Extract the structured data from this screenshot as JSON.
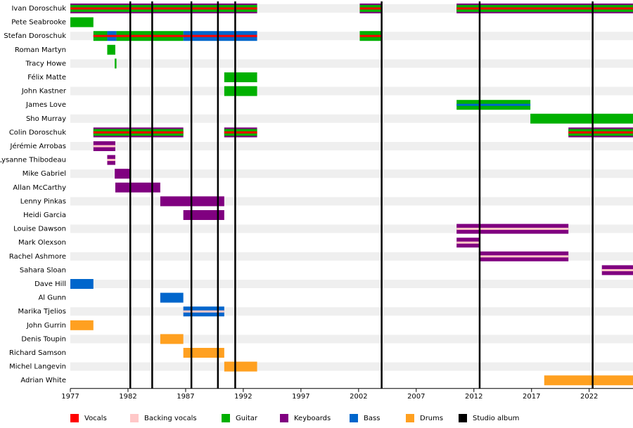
{
  "chart_data": {
    "type": "timeline",
    "xlim": [
      1977,
      2025.8
    ],
    "xticks": [
      1977,
      1982,
      1987,
      1992,
      1997,
      2002,
      2007,
      2012,
      2017,
      2022
    ],
    "roles": [
      {
        "name": "Vocals",
        "color": "#ff0000"
      },
      {
        "name": "Backing vocals",
        "color": "#ffc8c8"
      },
      {
        "name": "Guitar",
        "color": "#00b000"
      },
      {
        "name": "Keyboards",
        "color": "#800080"
      },
      {
        "name": "Bass",
        "color": "#0066cc"
      },
      {
        "name": "Drums",
        "color": "#ffa020"
      }
    ],
    "albums": {
      "name": "Studio album",
      "color": "#000000",
      "years": [
        1982.2,
        1984.1,
        1987.5,
        1989.8,
        1991.3,
        2004,
        2012.5,
        2022.3
      ]
    },
    "members": [
      {
        "name": "Ivan Doroschuk",
        "periods": [
          {
            "start": 1977,
            "end": 1993.2,
            "roles": [
              "Vocals",
              "Guitar",
              "Keyboards"
            ]
          },
          {
            "start": 2002.1,
            "end": 2004,
            "roles": [
              "Vocals",
              "Guitar",
              "Keyboards"
            ]
          },
          {
            "start": 2010.5,
            "end": 2025.8,
            "roles": [
              "Vocals",
              "Guitar",
              "Keyboards"
            ]
          }
        ]
      },
      {
        "name": "Pete Seabrooke",
        "periods": [
          {
            "start": 1977,
            "end": 1979,
            "roles": [
              "Guitar"
            ]
          }
        ]
      },
      {
        "name": "Stefan Doroschuk",
        "periods": [
          {
            "start": 1979,
            "end": 1980.2,
            "roles": [
              "Vocals",
              "Guitar"
            ]
          },
          {
            "start": 1980.2,
            "end": 1981,
            "roles": [
              "Vocals",
              "Bass"
            ]
          },
          {
            "start": 1981,
            "end": 1986.8,
            "roles": [
              "Vocals",
              "Guitar"
            ]
          },
          {
            "start": 1986.8,
            "end": 1993.2,
            "roles": [
              "Vocals",
              "Bass"
            ]
          },
          {
            "start": 2002.1,
            "end": 2004,
            "roles": [
              "Vocals",
              "Guitar"
            ]
          }
        ]
      },
      {
        "name": "Roman Martyn",
        "periods": [
          {
            "start": 1980.2,
            "end": 1980.9,
            "roles": [
              "Guitar"
            ]
          }
        ]
      },
      {
        "name": "Tracy Howe",
        "periods": [
          {
            "start": 1980.85,
            "end": 1981,
            "roles": [
              "Guitar"
            ]
          }
        ]
      },
      {
        "name": "Félix Matte",
        "periods": [
          {
            "start": 1990.35,
            "end": 1993.2,
            "roles": [
              "Guitar"
            ]
          }
        ]
      },
      {
        "name": "John Kastner",
        "periods": [
          {
            "start": 1990.35,
            "end": 1993.2,
            "roles": [
              "Guitar"
            ]
          }
        ]
      },
      {
        "name": "James Love",
        "periods": [
          {
            "start": 2010.5,
            "end": 2016.9,
            "roles": [
              "Bass",
              "Guitar"
            ]
          }
        ]
      },
      {
        "name": "Sho Murray",
        "periods": [
          {
            "start": 2016.9,
            "end": 2025.8,
            "roles": [
              "Guitar"
            ]
          }
        ]
      },
      {
        "name": "Colin Doroschuk",
        "periods": [
          {
            "start": 1979,
            "end": 1986.8,
            "roles": [
              "Vocals",
              "Guitar",
              "Keyboards"
            ]
          },
          {
            "start": 1990.35,
            "end": 1993.2,
            "roles": [
              "Vocals",
              "Guitar",
              "Keyboards"
            ]
          },
          {
            "start": 2020.2,
            "end": 2025.8,
            "roles": [
              "Vocals",
              "Guitar",
              "Keyboards"
            ]
          }
        ]
      },
      {
        "name": "Jérémie Arrobas",
        "periods": [
          {
            "start": 1979,
            "end": 1980.9,
            "roles": [
              "Backing vocals",
              "Keyboards"
            ]
          }
        ]
      },
      {
        "name": "Lysanne Thibodeau",
        "periods": [
          {
            "start": 1980.2,
            "end": 1980.9,
            "roles": [
              "Backing vocals",
              "Keyboards"
            ]
          }
        ]
      },
      {
        "name": "Mike Gabriel",
        "periods": [
          {
            "start": 1980.85,
            "end": 1982.2,
            "roles": [
              "Keyboards"
            ]
          }
        ]
      },
      {
        "name": "Allan McCarthy",
        "periods": [
          {
            "start": 1980.9,
            "end": 1984.8,
            "roles": [
              "Keyboards"
            ]
          }
        ]
      },
      {
        "name": "Lenny Pinkas",
        "periods": [
          {
            "start": 1984.8,
            "end": 1990.35,
            "roles": [
              "Keyboards"
            ]
          }
        ]
      },
      {
        "name": "Heidi Garcia",
        "periods": [
          {
            "start": 1986.8,
            "end": 1990.35,
            "roles": [
              "Keyboards"
            ]
          }
        ]
      },
      {
        "name": "Louise Dawson",
        "periods": [
          {
            "start": 2010.5,
            "end": 2020.2,
            "roles": [
              "Backing vocals",
              "Keyboards"
            ]
          }
        ]
      },
      {
        "name": "Mark Olexson",
        "periods": [
          {
            "start": 2010.5,
            "end": 2012.5,
            "roles": [
              "Backing vocals",
              "Keyboards"
            ]
          }
        ]
      },
      {
        "name": "Rachel Ashmore",
        "periods": [
          {
            "start": 2012.5,
            "end": 2020.2,
            "roles": [
              "Backing vocals",
              "Keyboards"
            ]
          }
        ]
      },
      {
        "name": "Sahara Sloan",
        "periods": [
          {
            "start": 2023.1,
            "end": 2025.8,
            "roles": [
              "Backing vocals",
              "Keyboards"
            ]
          }
        ]
      },
      {
        "name": "Dave Hill",
        "periods": [
          {
            "start": 1977,
            "end": 1979,
            "roles": [
              "Bass"
            ]
          }
        ]
      },
      {
        "name": "Al Gunn",
        "periods": [
          {
            "start": 1984.8,
            "end": 1986.8,
            "roles": [
              "Bass"
            ]
          }
        ]
      },
      {
        "name": "Marika Tjelios",
        "periods": [
          {
            "start": 1986.8,
            "end": 1990.35,
            "roles": [
              "Backing vocals",
              "Bass"
            ]
          }
        ]
      },
      {
        "name": "John Gurrin",
        "periods": [
          {
            "start": 1977,
            "end": 1979,
            "roles": [
              "Drums"
            ]
          }
        ]
      },
      {
        "name": "Denis Toupin",
        "periods": [
          {
            "start": 1984.8,
            "end": 1986.8,
            "roles": [
              "Drums"
            ]
          }
        ]
      },
      {
        "name": "Richard Samson",
        "periods": [
          {
            "start": 1986.8,
            "end": 1990.35,
            "roles": [
              "Drums"
            ]
          }
        ]
      },
      {
        "name": "Michel Langevin",
        "periods": [
          {
            "start": 1990.35,
            "end": 1993.2,
            "roles": [
              "Drums"
            ]
          }
        ]
      },
      {
        "name": "Adrian White",
        "periods": [
          {
            "start": 2018.1,
            "end": 2025.8,
            "roles": [
              "Drums"
            ]
          }
        ]
      }
    ]
  }
}
